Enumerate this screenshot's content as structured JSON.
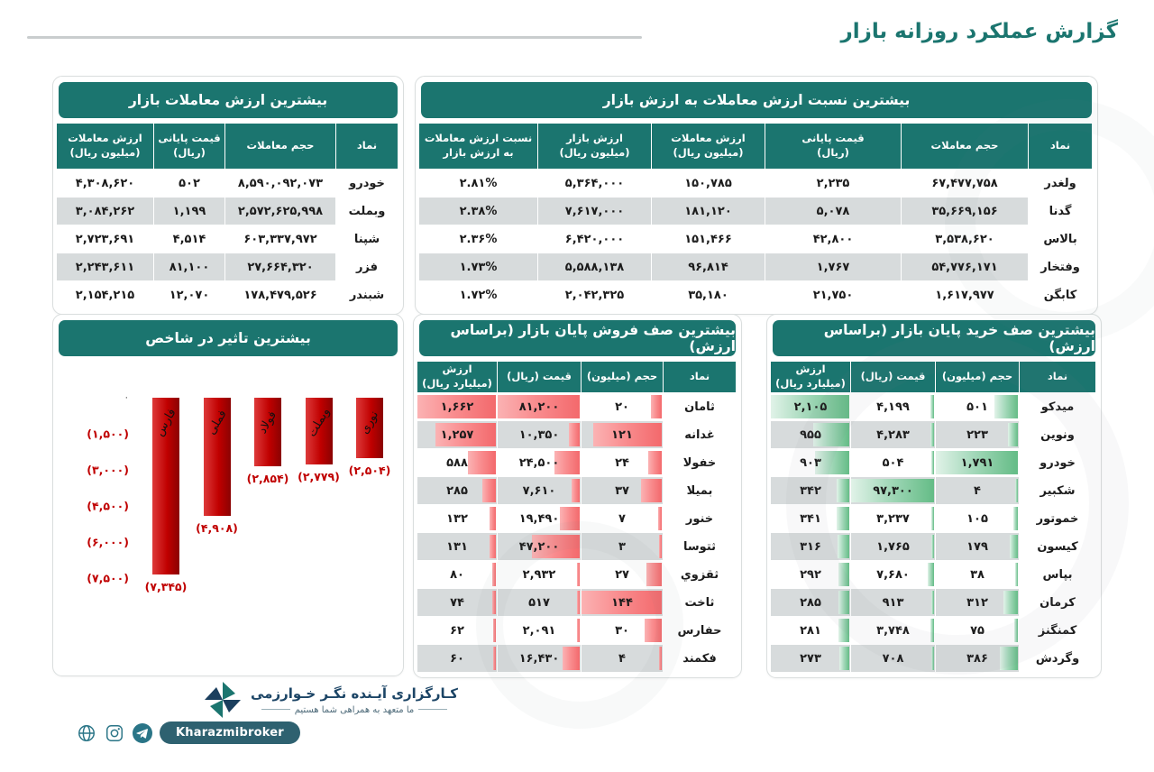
{
  "page": {
    "title": "گزارش عملکرد روزانه بازار"
  },
  "colors": {
    "teal_header": "#1B756F",
    "row_alt": "#D7DBDC",
    "chart_bar_red": "#C00000",
    "sell_databar": "#F3696C",
    "buy_databar": "#64BC86",
    "brand_navy": "#1C4566"
  },
  "tables": {
    "top_value": {
      "title": "بیشترین ارزش معاملات بازار",
      "headers": [
        "نماد",
        "حجم معاملات",
        "قیمت پایانی\n(ریال)",
        "ارزش معاملات\n(میلیون ریال)"
      ],
      "rows": [
        [
          "خودرو",
          "۸,۵۹۰,۰۹۲,۰۷۳",
          "۵۰۲",
          "۴,۳۰۸,۶۲۰"
        ],
        [
          "وبملت",
          "۲,۵۷۲,۶۲۵,۹۹۸",
          "۱,۱۹۹",
          "۳,۰۸۴,۲۶۲"
        ],
        [
          "شپنا",
          "۶۰۳,۳۳۷,۹۷۲",
          "۴,۵۱۴",
          "۲,۷۲۳,۶۹۱"
        ],
        [
          "فزر",
          "۲۷,۶۶۴,۳۲۰",
          "۸۱,۱۰۰",
          "۲,۲۴۳,۶۱۱"
        ],
        [
          "شبندر",
          "۱۷۸,۴۷۹,۵۲۶",
          "۱۲,۰۷۰",
          "۲,۱۵۴,۲۱۵"
        ]
      ]
    },
    "ratio": {
      "title": "بیشترین نسبت ارزش معاملات به ارزش بازار",
      "headers": [
        "نماد",
        "حجم معاملات",
        "قیمت پایانی\n(ریال)",
        "ارزش معاملات\n(میلیون ریال)",
        "ارزش بازار\n(میلیون ریال)",
        "نسبت ارزش معاملات\nبه ارزش بازار"
      ],
      "rows": [
        [
          "ولغدر",
          "۶۷,۴۷۷,۷۵۸",
          "۲,۲۳۵",
          "۱۵۰,۷۸۵",
          "۵,۳۶۴,۰۰۰",
          "۲.۸۱%"
        ],
        [
          "گدنا",
          "۳۵,۶۶۹,۱۵۶",
          "۵,۰۷۸",
          "۱۸۱,۱۲۰",
          "۷,۶۱۷,۰۰۰",
          "۲.۳۸%"
        ],
        [
          "بالاس",
          "۳,۵۳۸,۶۲۰",
          "۴۲,۸۰۰",
          "۱۵۱,۴۶۶",
          "۶,۴۲۰,۰۰۰",
          "۲.۳۶%"
        ],
        [
          "وفتخار",
          "۵۴,۷۷۶,۱۷۱",
          "۱,۷۶۷",
          "۹۶,۸۱۴",
          "۵,۵۸۸,۱۳۸",
          "۱.۷۳%"
        ],
        [
          "کابگن",
          "۱,۶۱۷,۹۷۷",
          "۲۱,۷۵۰",
          "۳۵,۱۸۰",
          "۲,۰۴۲,۳۲۵",
          "۱.۷۲%"
        ]
      ]
    }
  },
  "sell_queue": {
    "title": "بیشترین صف فروش پایان بازار (براساس ارزش)",
    "headers": [
      "نماد",
      "حجم (میلیون)",
      "قیمت (ریال)",
      "ارزش\n(میلیارد ریال)"
    ],
    "rows": [
      {
        "symbol": "ثامان",
        "texts": [
          "۲۰",
          "۸۱,۲۰۰",
          "۱,۶۶۲"
        ],
        "values": [
          20,
          81200,
          1662
        ]
      },
      {
        "symbol": "غدانه",
        "texts": [
          "۱۲۱",
          "۱۰,۳۵۰",
          "۱,۲۵۷"
        ],
        "values": [
          121,
          10350,
          1257
        ]
      },
      {
        "symbol": "خفولا",
        "texts": [
          "۲۴",
          "۲۴,۵۰۰",
          "۵۸۸"
        ],
        "values": [
          24,
          24500,
          588
        ]
      },
      {
        "symbol": "بمیلا",
        "texts": [
          "۳۷",
          "۷,۶۱۰",
          "۲۸۵"
        ],
        "values": [
          37,
          7610,
          285
        ]
      },
      {
        "symbol": "خنور",
        "texts": [
          "۷",
          "۱۹,۴۹۰",
          "۱۳۲"
        ],
        "values": [
          7,
          19490,
          132
        ]
      },
      {
        "symbol": "ثتوسا",
        "texts": [
          "۳",
          "۴۷,۲۰۰",
          "۱۳۱"
        ],
        "values": [
          3,
          47200,
          131
        ]
      },
      {
        "symbol": "ثقزوي",
        "texts": [
          "۲۷",
          "۲,۹۳۲",
          "۸۰"
        ],
        "values": [
          27,
          2932,
          80
        ]
      },
      {
        "symbol": "ثاخت",
        "texts": [
          "۱۴۴",
          "۵۱۷",
          "۷۴"
        ],
        "values": [
          144,
          517,
          74
        ]
      },
      {
        "symbol": "حفارس",
        "texts": [
          "۳۰",
          "۲,۰۹۱",
          "۶۲"
        ],
        "values": [
          30,
          2091,
          62
        ]
      },
      {
        "symbol": "فکمند",
        "texts": [
          "۴",
          "۱۶,۴۳۰",
          "۶۰"
        ],
        "values": [
          4,
          16430,
          60
        ]
      }
    ]
  },
  "buy_queue": {
    "title": "بیشترین صف خرید پایان بازار (براساس ارزش)",
    "headers": [
      "نماد",
      "حجم (میلیون)",
      "قیمت (ریال)",
      "ارزش\n(میلیارد ریال)"
    ],
    "rows": [
      {
        "symbol": "میدکو",
        "texts": [
          "۵۰۱",
          "۴,۱۹۹",
          "۲,۱۰۵"
        ],
        "values": [
          501,
          4199,
          2105
        ]
      },
      {
        "symbol": "ونوین",
        "texts": [
          "۲۲۳",
          "۴,۲۸۳",
          "۹۵۵"
        ],
        "values": [
          223,
          4283,
          955
        ]
      },
      {
        "symbol": "خودرو",
        "texts": [
          "۱,۷۹۱",
          "۵۰۴",
          "۹۰۳"
        ],
        "values": [
          1791,
          504,
          903
        ]
      },
      {
        "symbol": "شکبیر",
        "texts": [
          "۴",
          "۹۷,۳۰۰",
          "۳۴۲"
        ],
        "values": [
          4,
          97300,
          342
        ]
      },
      {
        "symbol": "خموتور",
        "texts": [
          "۱۰۵",
          "۳,۲۳۷",
          "۳۴۱"
        ],
        "values": [
          105,
          3237,
          341
        ]
      },
      {
        "symbol": "کیسون",
        "texts": [
          "۱۷۹",
          "۱,۷۶۵",
          "۳۱۶"
        ],
        "values": [
          179,
          1765,
          316
        ]
      },
      {
        "symbol": "بپاس",
        "texts": [
          "۳۸",
          "۷,۶۸۰",
          "۲۹۲"
        ],
        "values": [
          38,
          7680,
          292
        ]
      },
      {
        "symbol": "کرمان",
        "texts": [
          "۳۱۲",
          "۹۱۳",
          "۲۸۵"
        ],
        "values": [
          312,
          913,
          285
        ]
      },
      {
        "symbol": "کمنگنز",
        "texts": [
          "۷۵",
          "۳,۷۴۸",
          "۲۸۱"
        ],
        "values": [
          75,
          3748,
          281
        ]
      },
      {
        "symbol": "وگردش",
        "texts": [
          "۳۸۶",
          "۷۰۸",
          "۲۷۳"
        ],
        "values": [
          386,
          708,
          273
        ]
      }
    ]
  },
  "chart_data": {
    "type": "bar",
    "title": "بیشترین تاثیر در شاخص",
    "categories": [
      "فارس",
      "فملی",
      "فولاد",
      "وبملت",
      "نوری"
    ],
    "values": [
      -7345,
      -4908,
      -2854,
      -2779,
      -2504
    ],
    "value_labels": [
      "(۷,۳۴۵)",
      "(۴,۹۰۸)",
      "(۲,۸۵۴)",
      "(۲,۷۷۹)",
      "(۲,۵۰۴)"
    ],
    "y_ticks": [
      "۰",
      "(۱,۵۰۰)",
      "(۳,۰۰۰)",
      "(۴,۵۰۰)",
      "(۶,۰۰۰)",
      "(۷,۵۰۰)"
    ],
    "ylim": [
      -7500,
      0
    ],
    "xlabel": "",
    "ylabel": "",
    "grid": false,
    "legend": "none",
    "bar_color": "#C00000"
  },
  "footer": {
    "brand_fa": "کـارگزاری آیـنده نگـر خـوارزمی",
    "slogan": "ما متعهد به همراهی شما هستیم",
    "handle": "Kharazmibroker",
    "icons": [
      "globe-icon",
      "instagram-icon",
      "telegram-icon"
    ]
  }
}
